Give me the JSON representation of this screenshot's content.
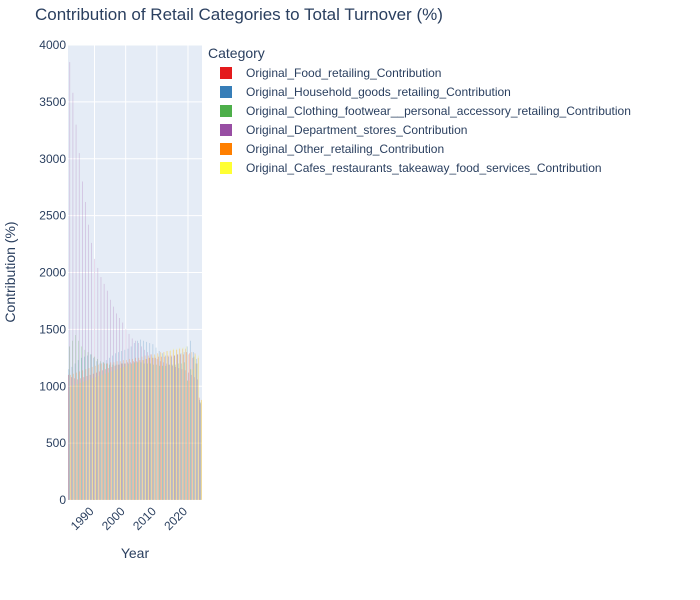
{
  "chart_data": {
    "type": "bar",
    "barmode": "group",
    "title": "Contribution of Retail Categories to Total Turnover (%)",
    "xlabel": "Year",
    "ylabel": "Contribution (%)",
    "xlim": [
      1982,
      2024
    ],
    "ylim": [
      0,
      4000
    ],
    "yticks": [
      0,
      500,
      1000,
      1500,
      2000,
      2500,
      3000,
      3500,
      4000
    ],
    "xticks": [
      1990,
      2000,
      2010,
      2020
    ],
    "grid": true,
    "legend": {
      "title": "Category",
      "placement": "right"
    },
    "x": [
      1982,
      1983,
      1984,
      1985,
      1986,
      1987,
      1988,
      1989,
      1990,
      1991,
      1992,
      1993,
      1994,
      1995,
      1996,
      1997,
      1998,
      1999,
      2000,
      2001,
      2002,
      2003,
      2004,
      2005,
      2006,
      2007,
      2008,
      2009,
      2010,
      2011,
      2012,
      2013,
      2014,
      2015,
      2016,
      2017,
      2018,
      2019,
      2020,
      2021,
      2022,
      2023,
      2024
    ],
    "series": [
      {
        "name": "Original_Food_retailing_Contribution",
        "color": "#e41a1c",
        "values": [
          1100,
          1080,
          1070,
          1060,
          1070,
          1080,
          1090,
          1100,
          1110,
          1120,
          1130,
          1140,
          1150,
          1160,
          1170,
          1180,
          1190,
          1200,
          1200,
          1210,
          1210,
          1220,
          1220,
          1230,
          1230,
          1240,
          1250,
          1250,
          1250,
          1260,
          1260,
          1260,
          1270,
          1270,
          1270,
          1280,
          1280,
          1280,
          1300,
          1290,
          1250,
          1200,
          900
        ]
      },
      {
        "name": "Original_Household_goods_retailing_Contribution",
        "color": "#377eb8",
        "values": [
          1150,
          1170,
          1200,
          1230,
          1250,
          1260,
          1270,
          1280,
          1250,
          1220,
          1200,
          1210,
          1230,
          1250,
          1270,
          1290,
          1300,
          1310,
          1320,
          1330,
          1350,
          1380,
          1400,
          1410,
          1400,
          1390,
          1380,
          1370,
          1340,
          1310,
          1290,
          1270,
          1260,
          1260,
          1270,
          1280,
          1290,
          1300,
          1350,
          1400,
          1300,
          1240,
          880
        ]
      },
      {
        "name": "Original_Clothing_footwear__personal_accessory_retailing_Contribution",
        "color": "#4daf4a",
        "values": [
          1350,
          1400,
          1450,
          1400,
          1350,
          1320,
          1300,
          1280,
          1260,
          1240,
          1220,
          1210,
          1200,
          1190,
          1190,
          1190,
          1190,
          1200,
          1200,
          1200,
          1200,
          1210,
          1210,
          1210,
          1200,
          1200,
          1200,
          1190,
          1190,
          1180,
          1180,
          1180,
          1190,
          1190,
          1190,
          1200,
          1200,
          1210,
          1050,
          1150,
          1260,
          1200,
          860
        ]
      },
      {
        "name": "Original_Department_stores_Contribution",
        "color": "#984ea3",
        "values": [
          3850,
          3580,
          3300,
          3050,
          2800,
          2620,
          2420,
          2260,
          2120,
          2040,
          1960,
          1900,
          1840,
          1760,
          1700,
          1640,
          1600,
          1560,
          1500,
          1460,
          1420,
          1400,
          1380,
          1350,
          1320,
          1300,
          1280,
          1250,
          1240,
          1220,
          1210,
          1200,
          1190,
          1180,
          1170,
          1160,
          1150,
          1140,
          1120,
          1100,
          1080,
          1060,
          850
        ]
      },
      {
        "name": "Original_Other_retailing_Contribution",
        "color": "#ff7f00",
        "values": [
          1100,
          1110,
          1120,
          1130,
          1140,
          1150,
          1160,
          1170,
          1180,
          1190,
          1200,
          1200,
          1200,
          1210,
          1210,
          1220,
          1220,
          1230,
          1230,
          1240,
          1240,
          1250,
          1250,
          1260,
          1270,
          1270,
          1280,
          1280,
          1290,
          1300,
          1300,
          1310,
          1310,
          1320,
          1320,
          1330,
          1330,
          1330,
          1280,
          1300,
          1290,
          1250,
          880
        ]
      },
      {
        "name": "Original_Cafes_restaurants_takeaway_food_services_Contribution",
        "color": "#ffff33",
        "values": [
          1000,
          1010,
          1020,
          1030,
          1040,
          1050,
          1060,
          1070,
          1080,
          1090,
          1100,
          1110,
          1120,
          1130,
          1140,
          1150,
          1160,
          1170,
          1180,
          1190,
          1200,
          1210,
          1220,
          1230,
          1240,
          1250,
          1260,
          1270,
          1280,
          1290,
          1300,
          1310,
          1320,
          1330,
          1330,
          1340,
          1340,
          1350,
          1050,
          1150,
          1280,
          1270,
          880
        ]
      }
    ]
  }
}
